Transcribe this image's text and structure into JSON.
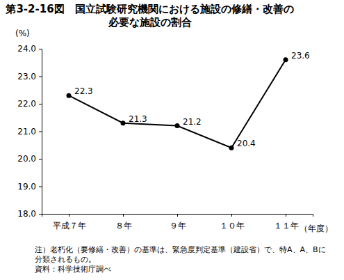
{
  "chart_data": {
    "type": "line",
    "title": "第3-2-16図　国立試験研究機関における施設の修繕・改善の必要な施設の割合",
    "y_label": "(%)",
    "x_label": "（年度）",
    "categories": [
      "平成７年",
      "８年",
      "９年",
      "１０年",
      "１１年"
    ],
    "values": [
      22.3,
      21.3,
      21.2,
      20.4,
      23.6
    ],
    "color": "#000000",
    "marker": "circle",
    "line_style": "solid",
    "data_labels": true,
    "grid": false,
    "ylim": [
      18,
      24
    ],
    "yticks": [
      {
        "value": 18,
        "label": "18.0"
      },
      {
        "value": 19,
        "label": "19.0"
      },
      {
        "value": 20,
        "label": "20.0"
      },
      {
        "value": 21,
        "label": "21.0"
      },
      {
        "value": 22,
        "label": "22.0"
      },
      {
        "value": 23,
        "label": "23.0"
      },
      {
        "value": 24,
        "label": "24.0"
      }
    ],
    "notes": [
      "注）老朽化（要修繕・改善）の基準は、緊急度判定基準（建設省）で、特A、A、Bに分類されるもの。",
      "資料：科学技術庁調べ"
    ]
  }
}
